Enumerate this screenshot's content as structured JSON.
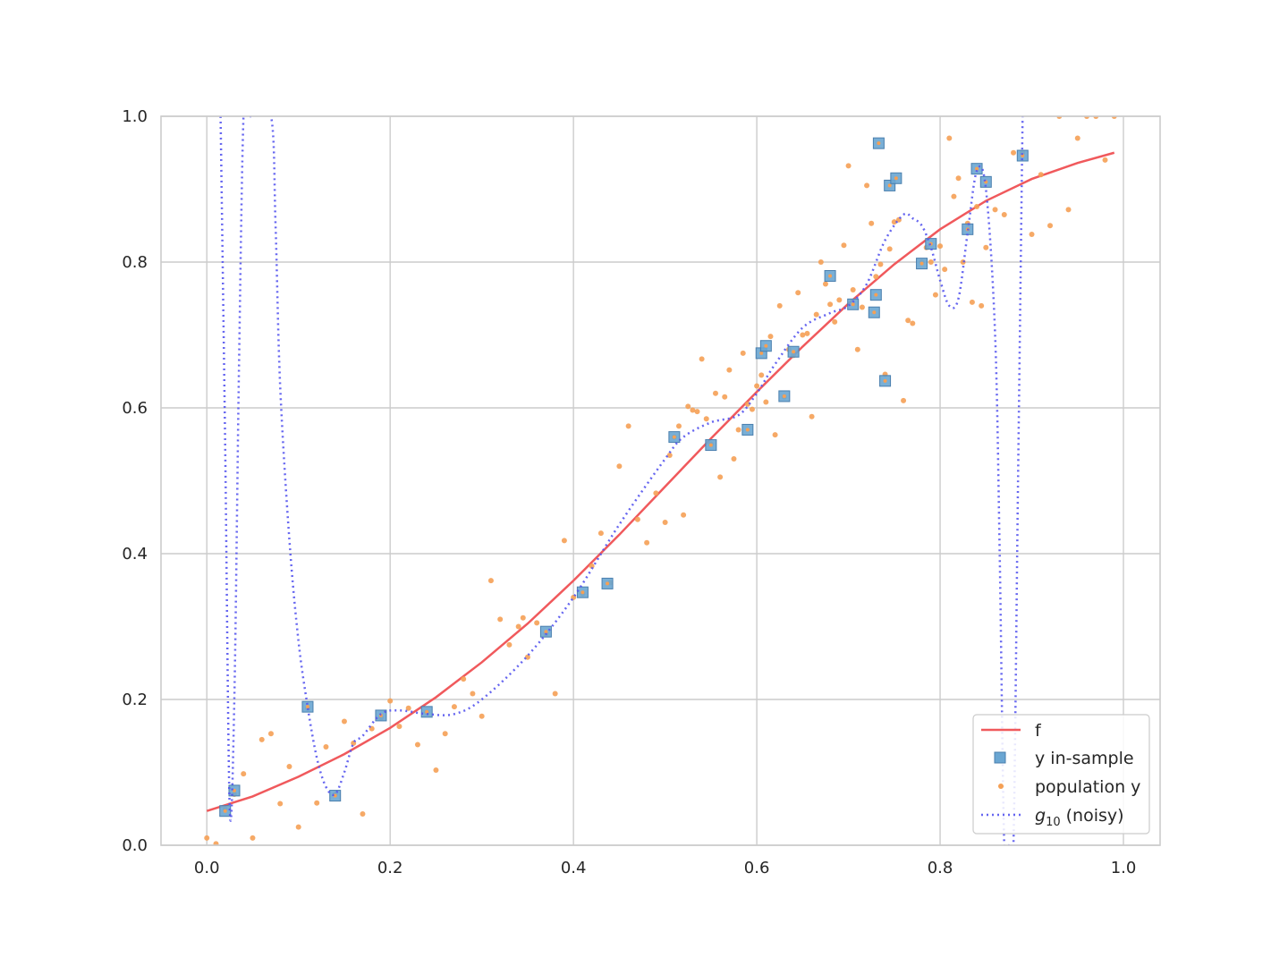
{
  "chart_data": {
    "type": "scatter",
    "title": "",
    "xlabel": "",
    "ylabel": "",
    "xlim": [
      -0.05,
      1.04
    ],
    "ylim": [
      0.0,
      1.0
    ],
    "x_ticks": [
      "0.0",
      "0.2",
      "0.4",
      "0.6",
      "0.8",
      "1.0"
    ],
    "y_ticks": [
      "0.0",
      "0.2",
      "0.4",
      "0.6",
      "0.8",
      "1.0"
    ],
    "grid": true,
    "legend_position": "lower-right",
    "colors": {
      "f": "#f0595c",
      "in_sample": "#6aa6d2",
      "in_sample_edge": "#4a7fae",
      "population": "#f5a055",
      "g10": "#5555ee",
      "grid": "#cccccc",
      "axes": "#cccccc"
    },
    "series": [
      {
        "name": "f",
        "kind": "line",
        "x": [
          0.0,
          0.05,
          0.1,
          0.15,
          0.2,
          0.25,
          0.3,
          0.35,
          0.4,
          0.45,
          0.5,
          0.55,
          0.6,
          0.65,
          0.7,
          0.75,
          0.8,
          0.85,
          0.9,
          0.95,
          0.99
        ],
        "y": [
          0.047,
          0.067,
          0.094,
          0.125,
          0.161,
          0.203,
          0.251,
          0.304,
          0.363,
          0.426,
          0.492,
          0.558,
          0.622,
          0.684,
          0.743,
          0.797,
          0.845,
          0.884,
          0.914,
          0.936,
          0.95
        ]
      },
      {
        "name": "y in-sample",
        "kind": "square",
        "x": [
          0.02,
          0.03,
          0.11,
          0.14,
          0.19,
          0.24,
          0.37,
          0.41,
          0.437,
          0.51,
          0.55,
          0.59,
          0.605,
          0.61,
          0.63,
          0.64,
          0.68,
          0.705,
          0.728,
          0.73,
          0.733,
          0.74,
          0.745,
          0.752,
          0.78,
          0.79,
          0.83,
          0.84,
          0.85,
          0.89
        ],
        "y": [
          0.047,
          0.075,
          0.19,
          0.068,
          0.178,
          0.183,
          0.293,
          0.347,
          0.359,
          0.56,
          0.549,
          0.57,
          0.675,
          0.685,
          0.616,
          0.677,
          0.781,
          0.742,
          0.731,
          0.755,
          0.963,
          0.637,
          0.905,
          0.915,
          0.798,
          0.825,
          0.845,
          0.928,
          0.91,
          0.946
        ]
      },
      {
        "name": "population y",
        "kind": "dot",
        "x": [
          0.0,
          0.01,
          0.02,
          0.03,
          0.04,
          0.05,
          0.06,
          0.07,
          0.08,
          0.09,
          0.1,
          0.11,
          0.12,
          0.13,
          0.14,
          0.15,
          0.16,
          0.17,
          0.18,
          0.19,
          0.2,
          0.21,
          0.22,
          0.23,
          0.24,
          0.25,
          0.26,
          0.27,
          0.28,
          0.29,
          0.3,
          0.31,
          0.32,
          0.33,
          0.34,
          0.345,
          0.35,
          0.36,
          0.37,
          0.38,
          0.39,
          0.4,
          0.41,
          0.42,
          0.43,
          0.44,
          0.45,
          0.46,
          0.47,
          0.48,
          0.49,
          0.5,
          0.51,
          0.52,
          0.53,
          0.54,
          0.55,
          0.56,
          0.57,
          0.58,
          0.59,
          0.6,
          0.61,
          0.62,
          0.63,
          0.64,
          0.65,
          0.66,
          0.67,
          0.68,
          0.69,
          0.7,
          0.71,
          0.72,
          0.73,
          0.74,
          0.75,
          0.76,
          0.77,
          0.78,
          0.79,
          0.8,
          0.81,
          0.82,
          0.83,
          0.84,
          0.85,
          0.86,
          0.87,
          0.88,
          0.89,
          0.9,
          0.91,
          0.92,
          0.93,
          0.94,
          0.95,
          0.96,
          0.97,
          0.98,
          0.99,
          0.505,
          0.515,
          0.525,
          0.535,
          0.545,
          0.555,
          0.565,
          0.575,
          0.585,
          0.595,
          0.605,
          0.615,
          0.625,
          0.635,
          0.645,
          0.655,
          0.665,
          0.675,
          0.685,
          0.695,
          0.705,
          0.715,
          0.725,
          0.735,
          0.745,
          0.755,
          0.765,
          0.785,
          0.795,
          0.805,
          0.815,
          0.825,
          0.835,
          0.845
        ],
        "y": [
          0.01,
          0.002,
          0.05,
          0.07,
          0.098,
          0.01,
          0.145,
          0.153,
          0.057,
          0.108,
          0.025,
          0.188,
          0.058,
          0.135,
          0.07,
          0.17,
          0.14,
          0.043,
          0.16,
          0.175,
          0.198,
          0.163,
          0.188,
          0.138,
          0.182,
          0.103,
          0.153,
          0.19,
          0.228,
          0.208,
          0.177,
          0.363,
          0.31,
          0.275,
          0.3,
          0.312,
          0.258,
          0.305,
          0.29,
          0.208,
          0.418,
          0.34,
          0.345,
          0.383,
          0.428,
          0.36,
          0.52,
          0.575,
          0.447,
          0.415,
          0.483,
          0.443,
          0.56,
          0.453,
          0.597,
          0.667,
          0.55,
          0.505,
          0.652,
          0.57,
          0.605,
          0.63,
          0.608,
          0.563,
          0.615,
          0.672,
          0.7,
          0.588,
          0.8,
          0.742,
          0.748,
          0.932,
          0.68,
          0.905,
          0.78,
          0.646,
          0.855,
          0.61,
          0.716,
          0.8,
          0.8,
          0.822,
          0.97,
          0.915,
          0.853,
          0.876,
          0.82,
          0.872,
          0.865,
          0.95,
          0.95,
          0.838,
          0.92,
          0.85,
          1.0,
          0.872,
          0.97,
          1.0,
          1.0,
          0.94,
          1.0,
          0.535,
          0.575,
          0.602,
          0.595,
          0.585,
          0.62,
          0.615,
          0.53,
          0.675,
          0.598,
          0.645,
          0.698,
          0.74,
          0.68,
          0.758,
          0.702,
          0.728,
          0.77,
          0.718,
          0.823,
          0.762,
          0.738,
          0.853,
          0.797,
          0.818,
          0.858,
          0.72,
          0.82,
          0.755,
          0.79,
          0.89,
          0.8,
          0.745,
          0.74
        ]
      },
      {
        "name": "g10 (noisy)",
        "kind": "dotted-line",
        "x": [
          0.015,
          0.02,
          0.025,
          0.03,
          0.035,
          0.04,
          0.045,
          0.05,
          0.07,
          0.075,
          0.08,
          0.09,
          0.1,
          0.11,
          0.12,
          0.13,
          0.14,
          0.15,
          0.16,
          0.17,
          0.19,
          0.21,
          0.24,
          0.27,
          0.3,
          0.35,
          0.4,
          0.45,
          0.5,
          0.52,
          0.55,
          0.58,
          0.6,
          0.62,
          0.65,
          0.68,
          0.7,
          0.72,
          0.74,
          0.76,
          0.77,
          0.78,
          0.79,
          0.8,
          0.81,
          0.82,
          0.83,
          0.84,
          0.85,
          0.86,
          0.865,
          0.87,
          0.875,
          0.88,
          0.885,
          0.89
        ],
        "y": [
          1.0,
          0.55,
          0.05,
          0.2,
          0.65,
          1.0,
          1.0,
          1.0,
          1.0,
          0.85,
          0.63,
          0.42,
          0.28,
          0.19,
          0.12,
          0.08,
          0.07,
          0.1,
          0.14,
          0.15,
          0.18,
          0.185,
          0.18,
          0.18,
          0.2,
          0.26,
          0.34,
          0.44,
          0.53,
          0.56,
          0.58,
          0.59,
          0.62,
          0.66,
          0.71,
          0.73,
          0.74,
          0.77,
          0.83,
          0.865,
          0.86,
          0.85,
          0.82,
          0.775,
          0.74,
          0.75,
          0.84,
          0.925,
          0.9,
          0.7,
          0.4,
          0.0,
          0.0,
          0.0,
          0.5,
          1.0
        ]
      }
    ],
    "legend": [
      {
        "label": "f",
        "kind": "line"
      },
      {
        "label": "y in-sample",
        "kind": "square"
      },
      {
        "label": "population y",
        "kind": "dot"
      },
      {
        "label": "g",
        "sub": "10",
        "suffix": " (noisy)",
        "kind": "dotted-line"
      }
    ]
  }
}
